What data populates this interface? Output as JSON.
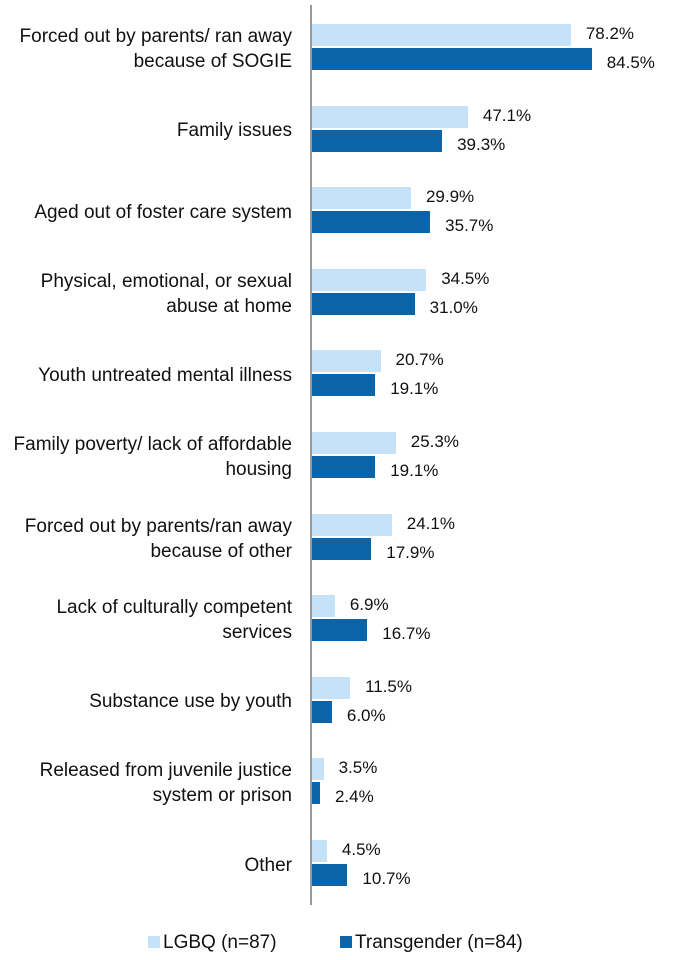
{
  "chart_data": {
    "type": "hbar",
    "categories": [
      "Forced out by parents/ ran away because of SOGIE",
      "Family issues",
      "Aged out of foster care system",
      "Physical, emotional, or sexual abuse at home",
      "Youth untreated mental illness",
      "Family poverty/ lack of affordable housing",
      "Forced out by parents/ran away because of other",
      "Lack of culturally competent services",
      "Substance use by youth",
      "Released from juvenile justice system or prison",
      "Other"
    ],
    "series": [
      {
        "name": "LGBQ (n=87)",
        "color": "#c5e2f9",
        "values": [
          78.2,
          47.1,
          29.9,
          34.5,
          20.7,
          25.3,
          24.1,
          6.9,
          11.5,
          3.5,
          4.5
        ],
        "value_labels": [
          "78.2%",
          "47.1%",
          "29.9%",
          "34.5%",
          "20.7%",
          "25.3%",
          "24.1%",
          "6.9%",
          "11.5%",
          "3.5%",
          "4.5%"
        ]
      },
      {
        "name": "Transgender (n=84)",
        "color": "#0b64a8",
        "values": [
          84.5,
          39.3,
          35.7,
          31.0,
          19.1,
          19.1,
          17.9,
          16.7,
          6.0,
          2.4,
          10.7
        ],
        "value_labels": [
          "84.5%",
          "39.3%",
          "35.7%",
          "31.0%",
          "19.1%",
          "19.1%",
          "17.9%",
          "16.7%",
          "6.0%",
          "2.4%",
          "10.7%"
        ]
      }
    ],
    "xlim": [
      0,
      100
    ],
    "legend": "bottom"
  }
}
